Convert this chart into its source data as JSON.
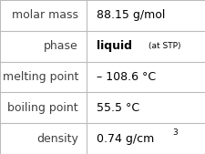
{
  "rows": [
    {
      "label": "molar mass",
      "value": "88.15 g/mol",
      "value_bold": false
    },
    {
      "label": "phase",
      "value": "liquid",
      "value_bold": true,
      "suffix": "(at STP)"
    },
    {
      "label": "melting point",
      "value": "– 108.6 °C",
      "value_bold": false
    },
    {
      "label": "boiling point",
      "value": "55.5 °C",
      "value_bold": false
    },
    {
      "label": "density",
      "value": "0.74 g/cm",
      "superscript": "3",
      "value_bold": false
    }
  ],
  "bg_color": "#ffffff",
  "border_color": "#bbbbbb",
  "label_color": "#404040",
  "value_color": "#000000",
  "divider_color": "#bbbbbb",
  "label_fontsize": 9.0,
  "value_fontsize": 9.0,
  "suffix_fontsize": 6.5,
  "sup_fontsize": 6.5,
  "col_split": 0.42
}
